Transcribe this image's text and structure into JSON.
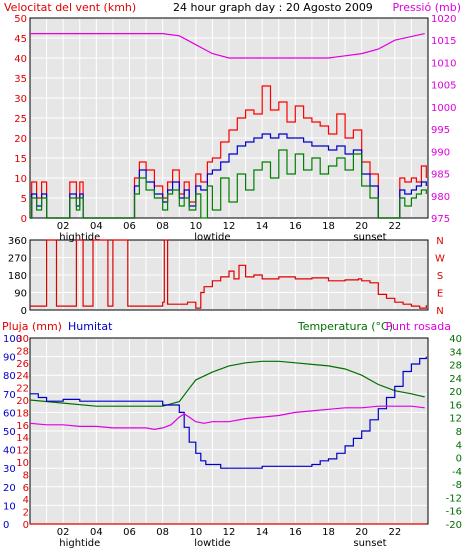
{
  "chart_data": [
    {
      "type": "line",
      "title": "24 hour graph day : 20 Agosto 2009",
      "left_label": "Velocitat del vent (kmh)",
      "right_label": "Pressió (mb)",
      "ylim": [
        0,
        50
      ],
      "y2lim": [
        975,
        1020
      ],
      "y_ticks": [
        "0",
        "5",
        "10",
        "15",
        "20",
        "25",
        "30",
        "35",
        "40",
        "45",
        "50"
      ],
      "y2_ticks": [
        "975",
        "980",
        "985",
        "990",
        "995",
        "1000",
        "1005",
        "1010",
        "1015",
        "1020"
      ],
      "x_ticks": [
        "02",
        "04",
        "06",
        "08",
        "10",
        "12",
        "14",
        "16",
        "18",
        "20",
        "22"
      ],
      "x_annotations": [
        {
          "hour": 3,
          "label": "hightide"
        },
        {
          "hour": 11,
          "label": "lowtide"
        },
        {
          "hour": 20.5,
          "label": "sunset"
        }
      ],
      "colors": {
        "gust": "#ff0000",
        "avg": "#0000c8",
        "min": "#008000",
        "pressure": "#e000e0"
      },
      "series": [
        {
          "key": "pressure",
          "axis": "right",
          "x": [
            0,
            8,
            9,
            9.5,
            10,
            11,
            12,
            13,
            14,
            16,
            18,
            19,
            20,
            21,
            22,
            23.8
          ],
          "values": [
            1016.5,
            1016.5,
            1016,
            1015,
            1014,
            1012,
            1011,
            1011,
            1011,
            1011,
            1011,
            1011.5,
            1012,
            1013,
            1015,
            1016.5
          ]
        },
        {
          "key": "gust",
          "axis": "left",
          "x": [
            0,
            0.1,
            0.4,
            0.7,
            1,
            1.5,
            2,
            2.4,
            2.8,
            3,
            3.2,
            3.5,
            6,
            6.3,
            6.6,
            7,
            7.5,
            8,
            8.3,
            8.6,
            9,
            9.3,
            9.6,
            10,
            10.3,
            10.7,
            11,
            11.5,
            12,
            12.5,
            13,
            13.5,
            14,
            14.5,
            15,
            15.5,
            16,
            16.5,
            17,
            17.5,
            18,
            18.5,
            19,
            19.5,
            20,
            20.5,
            21,
            21.5,
            22,
            22.3,
            22.6,
            23,
            23.3,
            23.6,
            23.9
          ],
          "values": [
            0,
            9,
            5,
            9,
            0,
            0,
            0,
            9,
            5,
            9,
            0,
            0,
            0,
            10,
            14,
            12,
            8,
            5,
            9,
            12,
            6,
            9,
            4,
            11,
            9,
            14,
            15,
            19,
            22,
            25,
            27,
            26,
            33,
            27,
            29,
            24,
            28,
            25,
            24,
            23,
            21,
            26,
            20,
            22,
            14,
            11,
            0,
            0,
            0,
            10,
            9,
            10,
            9,
            13,
            10
          ]
        },
        {
          "key": "avg",
          "axis": "left",
          "x": [
            0,
            0.1,
            0.4,
            0.7,
            1,
            1.5,
            2,
            2.4,
            2.8,
            3,
            3.2,
            3.5,
            6,
            6.3,
            6.6,
            7,
            7.5,
            8,
            8.3,
            8.6,
            9,
            9.3,
            9.6,
            10,
            10.3,
            10.7,
            11,
            11.5,
            12,
            12.5,
            13,
            13.5,
            14,
            14.5,
            15,
            15.5,
            16,
            16.5,
            17,
            17.5,
            18,
            18.5,
            19,
            19.5,
            20,
            20.5,
            21,
            21.5,
            22,
            22.3,
            22.6,
            23,
            23.3,
            23.6,
            23.9
          ],
          "values": [
            0,
            6,
            3,
            6,
            0,
            0,
            0,
            6,
            3,
            6,
            0,
            0,
            0,
            8,
            12,
            9,
            6,
            4,
            7,
            9,
            5,
            7,
            3,
            8,
            7,
            11,
            12,
            14,
            16,
            18,
            19,
            20,
            21,
            20,
            21,
            20,
            20,
            19,
            18,
            18,
            17,
            18,
            16,
            17,
            11,
            8,
            0,
            0,
            0,
            7,
            6,
            7,
            8,
            9,
            8
          ]
        },
        {
          "key": "min",
          "axis": "left",
          "x": [
            0,
            0.1,
            0.4,
            0.7,
            1,
            1.5,
            2,
            2.4,
            2.8,
            3,
            3.2,
            3.5,
            6,
            6.3,
            6.6,
            7,
            7.5,
            8,
            8.3,
            8.6,
            9,
            9.3,
            9.6,
            10,
            10.3,
            10.7,
            11,
            11.5,
            12,
            12.5,
            13,
            13.5,
            14,
            14.5,
            15,
            15.5,
            16,
            16.5,
            17,
            17.5,
            18,
            18.5,
            19,
            19.5,
            20,
            20.5,
            21,
            21.5,
            22,
            22.3,
            22.6,
            23,
            23.3,
            23.6,
            23.9
          ],
          "values": [
            0,
            5,
            2,
            5,
            0,
            0,
            0,
            5,
            2,
            5,
            0,
            0,
            0,
            6,
            10,
            7,
            5,
            2,
            6,
            7,
            3,
            5,
            2,
            6,
            0,
            8,
            2,
            10,
            4,
            11,
            7,
            12,
            14,
            10,
            17,
            11,
            16,
            12,
            15,
            11,
            13,
            15,
            12,
            16,
            8,
            5,
            0,
            0,
            0,
            5,
            3,
            5,
            6,
            7,
            6
          ]
        }
      ]
    },
    {
      "type": "line",
      "ylim": [
        0,
        360
      ],
      "y_ticks": [
        "0",
        "90",
        "180",
        "270",
        "360"
      ],
      "right_letters": [
        "N",
        "W",
        "S",
        "E",
        "N"
      ],
      "colors": {
        "direction": "#e00000"
      },
      "series": [
        {
          "key": "direction",
          "x": [
            0,
            0.5,
            0.9,
            1,
            1.3,
            1.6,
            2,
            2.7,
            2.8,
            3.1,
            3.2,
            3.7,
            3.8,
            4.6,
            4.7,
            4.9,
            5,
            5.8,
            5.9,
            6.5,
            6.6,
            7,
            7.5,
            8,
            8.1,
            8.2,
            8.3,
            9,
            9.5,
            10,
            10.3,
            10.5,
            11,
            11.5,
            12,
            12.3,
            12.6,
            13,
            13.5,
            14,
            15,
            16,
            17,
            18,
            19,
            19.8,
            20,
            20.5,
            21,
            21.5,
            22,
            22.5,
            23,
            23.5,
            23.9
          ],
          "values": [
            20,
            20,
            20,
            360,
            360,
            20,
            20,
            20,
            360,
            360,
            20,
            20,
            360,
            360,
            20,
            20,
            360,
            360,
            20,
            20,
            20,
            20,
            20,
            40,
            360,
            360,
            30,
            30,
            40,
            10,
            90,
            120,
            150,
            170,
            200,
            160,
            230,
            170,
            180,
            160,
            170,
            160,
            165,
            150,
            155,
            160,
            150,
            140,
            80,
            60,
            40,
            30,
            20,
            10,
            25
          ]
        }
      ]
    },
    {
      "type": "line",
      "left_label_1": "Pluja (mm)",
      "left_label_2": "Humitat",
      "right_label_1": "Temperatura (°C)",
      "right_label_2": "Punt rosada",
      "ylim_humidity": [
        0,
        100
      ],
      "ylim_rain": [
        0,
        30
      ],
      "y2lim": [
        -20,
        40
      ],
      "y_ticks_humidity": [
        "0",
        "10",
        "20",
        "30",
        "40",
        "50",
        "60",
        "70",
        "80",
        "90",
        "100"
      ],
      "y_ticks_rain": [
        "0",
        "2",
        "4",
        "6",
        "8",
        "10",
        "12",
        "14",
        "16",
        "18",
        "20",
        "22",
        "24",
        "26",
        "28",
        "30"
      ],
      "y2_ticks": [
        "-20",
        "-16",
        "-12",
        "-8",
        "-4",
        "0",
        "4",
        "8",
        "12",
        "16",
        "20",
        "24",
        "28",
        "34",
        "40"
      ],
      "x_ticks": [
        "02",
        "04",
        "06",
        "08",
        "10",
        "12",
        "14",
        "16",
        "18",
        "20",
        "22"
      ],
      "x_annotations": [
        {
          "hour": 3,
          "label": "hightide"
        },
        {
          "hour": 11,
          "label": "lowtide"
        },
        {
          "hour": 20.5,
          "label": "sunset"
        }
      ],
      "colors": {
        "temperature": "#007000",
        "humidity": "#0000c8",
        "dewpoint": "#e000e0",
        "rain": "#e00000"
      },
      "series": [
        {
          "key": "temperature",
          "x": [
            0,
            2,
            4,
            6,
            7,
            8,
            9,
            9.5,
            10,
            11,
            12,
            13,
            14,
            15,
            16,
            17,
            18,
            19,
            20,
            21,
            22,
            23,
            23.8
          ],
          "values": [
            20,
            19,
            18,
            18,
            18,
            18,
            19.5,
            23,
            26.5,
            29,
            31,
            32,
            32.5,
            32.5,
            32,
            31.5,
            31,
            30,
            28,
            25,
            23,
            22,
            21
          ]
        },
        {
          "key": "humidity",
          "x": [
            0,
            0.5,
            1,
            2,
            3,
            4,
            5,
            6,
            7,
            8,
            8.5,
            9,
            9.3,
            9.6,
            10,
            10.3,
            10.6,
            11,
            11.5,
            12,
            13,
            14,
            15,
            16,
            17,
            17.5,
            18,
            18.5,
            19,
            19.5,
            20,
            20.5,
            21,
            21.5,
            22,
            22.5,
            23,
            23.5,
            23.9
          ],
          "values": [
            70,
            68,
            66,
            67,
            66,
            66,
            66,
            66,
            66,
            64,
            64,
            60,
            52,
            44,
            38,
            34,
            32,
            32,
            30,
            30,
            30,
            31,
            31,
            31,
            32,
            34,
            35,
            38,
            42,
            46,
            50,
            56,
            62,
            68,
            74,
            82,
            86,
            89,
            90
          ]
        },
        {
          "key": "dewpoint",
          "x": [
            0,
            1,
            2,
            3,
            4,
            5,
            6,
            7,
            7.5,
            8,
            8.5,
            9,
            9.3,
            9.6,
            10,
            10.5,
            11,
            12,
            13,
            14,
            15,
            16,
            17,
            18,
            19,
            20,
            21,
            22,
            23,
            23.8
          ],
          "values": [
            12.5,
            12,
            12,
            11.5,
            11.5,
            11,
            11,
            11,
            10.5,
            11,
            12,
            14.5,
            15.5,
            14.5,
            13,
            12.5,
            13,
            13,
            14,
            14.5,
            15,
            16,
            16.5,
            17,
            17.5,
            17.5,
            18,
            18,
            18,
            17.5
          ]
        },
        {
          "key": "rain",
          "x": [
            0,
            23.9
          ],
          "values": [
            0,
            0
          ]
        }
      ]
    }
  ]
}
